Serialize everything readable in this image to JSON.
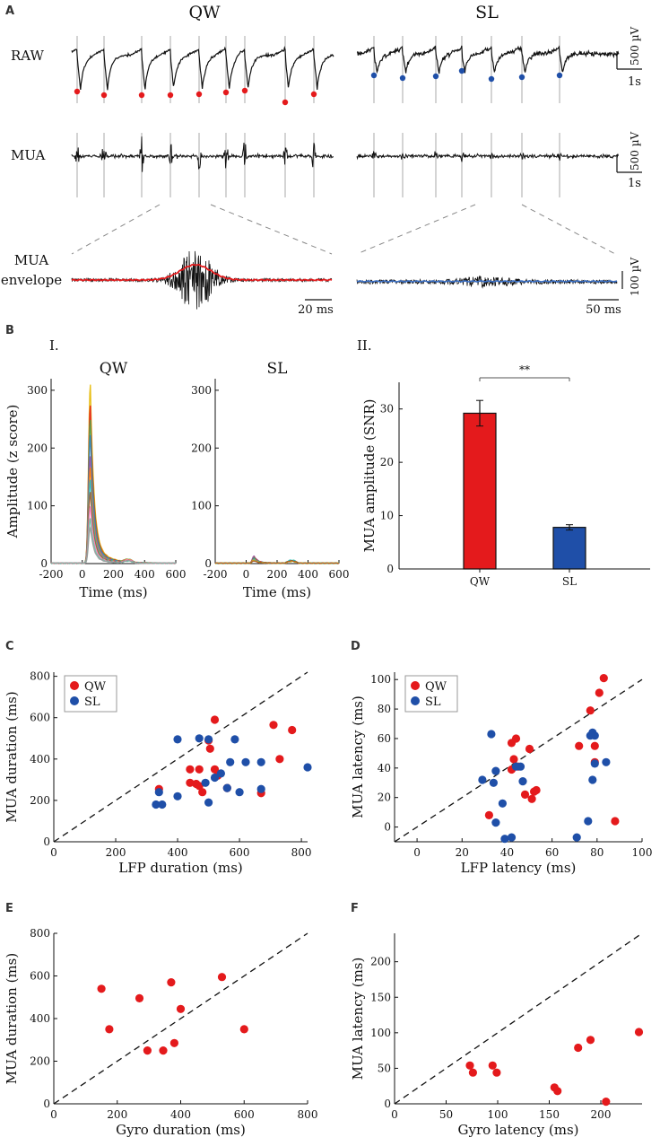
{
  "panel_A": {
    "letter": "A",
    "qw_title": "QW",
    "sl_title": "SL",
    "row_raw": "RAW",
    "row_mua": "MUA",
    "row_env_1": "MUA",
    "row_env_2": "envelope",
    "scale_raw_v": "500 µV",
    "scale_raw_t": "1s",
    "scale_mua_v": "500 µV",
    "scale_mua_t": "1s",
    "scale_env_v": "100 µV",
    "scale_env_t_qw": "20 ms",
    "scale_env_t_sl": "50 ms",
    "qw_event_count": 9,
    "sl_event_count": 7
  },
  "panel_B": {
    "letter": "B",
    "sub_I": "I.",
    "sub_II": "II.",
    "colors": {
      "qw": "#e41a1c",
      "sl": "#1f4fa8"
    }
  },
  "panel_C": {
    "letter": "C"
  },
  "panel_D": {
    "letter": "D"
  },
  "panel_E": {
    "letter": "E"
  },
  "panel_F": {
    "letter": "F"
  },
  "chart_data": [
    {
      "id": "B-I-QW",
      "type": "line",
      "title": "QW",
      "xlabel": "Time (ms)",
      "ylabel": "Amplitude (z score)",
      "xlim": [
        -200,
        600
      ],
      "ylim": [
        0,
        320
      ],
      "xticks": [
        "-200",
        "0",
        "200",
        "400",
        "600"
      ],
      "yticks": [
        "0",
        "100",
        "200",
        "300"
      ],
      "peak_time": 50,
      "peak_values": [
        300,
        265,
        240,
        215,
        180,
        160,
        140,
        120,
        95,
        75,
        60
      ],
      "series_colors": [
        "#e6b800",
        "#e41a1c",
        "#4daf4a",
        "#377eb8",
        "#984ea3",
        "#ff7f00",
        "#17becf",
        "#a65628",
        "#f781bf",
        "#66c2a5",
        "#999999"
      ]
    },
    {
      "id": "B-I-SL",
      "type": "line",
      "title": "SL",
      "xlabel": "Time (ms)",
      "ylabel": "",
      "xlim": [
        -200,
        600
      ],
      "ylim": [
        0,
        320
      ],
      "xticks": [
        "-200",
        "0",
        "200",
        "400",
        "600"
      ],
      "yticks": [
        "0",
        "100",
        "200",
        "300"
      ],
      "peak_time": 50,
      "peak_values": [
        12,
        10,
        9,
        8,
        7,
        6,
        5,
        4
      ],
      "series_colors": [
        "#984ea3",
        "#e41a1c",
        "#4daf4a",
        "#377eb8",
        "#ff7f00",
        "#17becf",
        "#e6b800",
        "#a65628"
      ]
    },
    {
      "id": "B-II",
      "type": "bar",
      "ylabel": "MUA amplitude (SNR)",
      "categories": [
        "QW",
        "SL"
      ],
      "values": [
        29.2,
        7.8
      ],
      "errors": [
        2.4,
        0.5
      ],
      "colors": [
        "#e41a1c",
        "#1f4fa8"
      ],
      "ylim": [
        0,
        35
      ],
      "yticks": [
        "0",
        "10",
        "20",
        "30"
      ],
      "significance": "**"
    },
    {
      "id": "C",
      "type": "scatter",
      "xlabel": "LFP duration (ms)",
      "ylabel": "MUA duration (ms)",
      "xlim": [
        0,
        820
      ],
      "ylim": [
        0,
        820
      ],
      "xticks": [
        "0",
        "200",
        "400",
        "600",
        "800"
      ],
      "yticks": [
        "0",
        "200",
        "400",
        "600",
        "800"
      ],
      "diagonal": true,
      "legend": [
        "QW",
        "SL"
      ],
      "series": [
        {
          "name": "QW",
          "color": "#e41a1c",
          "points": [
            [
              520,
              590
            ],
            [
              710,
              565
            ],
            [
              770,
              540
            ],
            [
              730,
              400
            ],
            [
              505,
              450
            ],
            [
              500,
              490
            ],
            [
              440,
              350
            ],
            [
              470,
              350
            ],
            [
              520,
              350
            ],
            [
              530,
              320
            ],
            [
              440,
              285
            ],
            [
              460,
              280
            ],
            [
              470,
              270
            ],
            [
              480,
              240
            ],
            [
              560,
              260
            ],
            [
              670,
              235
            ],
            [
              340,
              255
            ]
          ]
        },
        {
          "name": "SL",
          "color": "#1f4fa8",
          "points": [
            [
              400,
              495
            ],
            [
              470,
              500
            ],
            [
              500,
              495
            ],
            [
              585,
              495
            ],
            [
              570,
              385
            ],
            [
              620,
              385
            ],
            [
              670,
              385
            ],
            [
              520,
              310
            ],
            [
              540,
              330
            ],
            [
              490,
              285
            ],
            [
              560,
              260
            ],
            [
              600,
              240
            ],
            [
              670,
              255
            ],
            [
              340,
              240
            ],
            [
              330,
              180
            ],
            [
              350,
              180
            ],
            [
              400,
              220
            ],
            [
              500,
              190
            ],
            [
              820,
              360
            ]
          ]
        }
      ]
    },
    {
      "id": "D",
      "type": "scatter",
      "xlabel": "LFP latency (ms)",
      "ylabel": "MUA latency (ms)",
      "xlim": [
        -10,
        100
      ],
      "ylim": [
        -10,
        105
      ],
      "xticks": [
        "0",
        "20",
        "40",
        "60",
        "80",
        "100"
      ],
      "yticks": [
        "0",
        "20",
        "40",
        "60",
        "80",
        "100"
      ],
      "diagonal": true,
      "legend": [
        "QW",
        "SL"
      ],
      "series": [
        {
          "name": "QW",
          "color": "#e41a1c",
          "points": [
            [
              83,
              101
            ],
            [
              81,
              91
            ],
            [
              77,
              79
            ],
            [
              44,
              60
            ],
            [
              42,
              57
            ],
            [
              50,
              53
            ],
            [
              72,
              55
            ],
            [
              79,
              55
            ],
            [
              43,
              46
            ],
            [
              42,
              39
            ],
            [
              45,
              41
            ],
            [
              79,
              44
            ],
            [
              48,
              22
            ],
            [
              51,
              19
            ],
            [
              52,
              24
            ],
            [
              53,
              25
            ],
            [
              32,
              8
            ],
            [
              88,
              4
            ]
          ]
        },
        {
          "name": "SL",
          "color": "#1f4fa8",
          "points": [
            [
              33,
              63
            ],
            [
              78,
              64
            ],
            [
              79,
              62
            ],
            [
              77,
              62
            ],
            [
              46,
              41
            ],
            [
              29,
              32
            ],
            [
              35,
              38
            ],
            [
              34,
              30
            ],
            [
              44,
              41
            ],
            [
              47,
              31
            ],
            [
              38,
              16
            ],
            [
              79,
              43
            ],
            [
              78,
              32
            ],
            [
              84,
              44
            ],
            [
              35,
              3
            ],
            [
              76,
              4
            ],
            [
              39,
              -8
            ],
            [
              42,
              -7
            ],
            [
              71,
              -7
            ]
          ]
        }
      ]
    },
    {
      "id": "E",
      "type": "scatter",
      "xlabel": "Gyro duration (ms)",
      "ylabel": "MUA duration (ms)",
      "xlim": [
        0,
        800
      ],
      "ylim": [
        0,
        800
      ],
      "xticks": [
        "0",
        "200",
        "400",
        "600",
        "800"
      ],
      "yticks": [
        "0",
        "200",
        "400",
        "600",
        "800"
      ],
      "diagonal": true,
      "series": [
        {
          "name": "QW",
          "color": "#e41a1c",
          "points": [
            [
              150,
              540
            ],
            [
              175,
              350
            ],
            [
              270,
              495
            ],
            [
              370,
              570
            ],
            [
              400,
              445
            ],
            [
              530,
              595
            ],
            [
              600,
              350
            ],
            [
              380,
              285
            ],
            [
              295,
              250
            ],
            [
              345,
              250
            ]
          ]
        }
      ]
    },
    {
      "id": "F",
      "type": "scatter",
      "xlabel": "Gyro latency (ms)",
      "ylabel": "MUA latency (ms)",
      "xlim": [
        0,
        240
      ],
      "ylim": [
        0,
        240
      ],
      "xticks": [
        "0",
        "50",
        "100",
        "150",
        "200"
      ],
      "yticks": [
        "0",
        "50",
        "100",
        "150",
        "200"
      ],
      "diagonal": true,
      "series": [
        {
          "name": "QW",
          "color": "#e41a1c",
          "points": [
            [
              73,
              54
            ],
            [
              76,
              44
            ],
            [
              95,
              54
            ],
            [
              99,
              44
            ],
            [
              155,
              23
            ],
            [
              158,
              18
            ],
            [
              178,
              79
            ],
            [
              190,
              90
            ],
            [
              237,
              101
            ],
            [
              205,
              3
            ]
          ]
        }
      ]
    }
  ]
}
